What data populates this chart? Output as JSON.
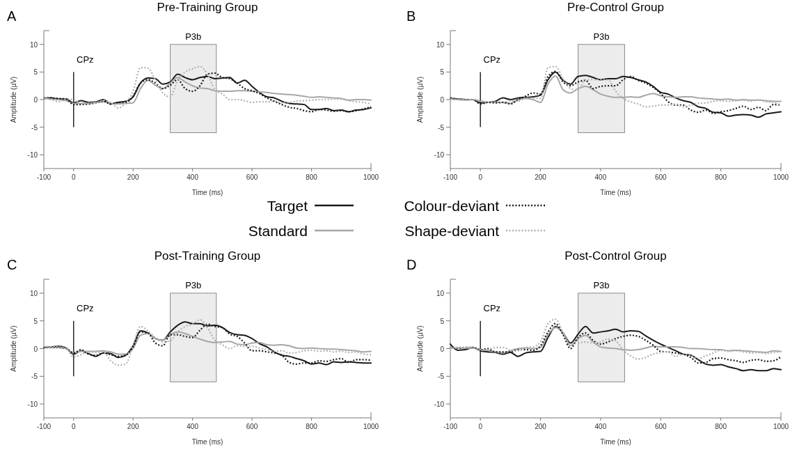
{
  "chart_data": [
    {
      "type": "line",
      "title": "Pre-Training Group",
      "xlabel": "Time (ms)",
      "ylabel": "Amplitude (µV)",
      "annotations": [
        "A",
        "CPz"
      ],
      "legend": "bottom",
      "xlim": [
        -100,
        1000
      ],
      "xticks": [
        -100,
        0,
        200,
        400,
        600,
        800,
        1000
      ],
      "ylim": [
        -12.5,
        12.5
      ],
      "yticks": [
        -10,
        -5,
        0,
        5,
        10
      ],
      "bands": [
        {
          "axis": "x",
          "from": 325,
          "to": 480,
          "label": "P3b",
          "color": "#ececec"
        }
      ],
      "ref_lines": [
        {
          "axis": "x",
          "value": 0,
          "color": "#222222"
        }
      ],
      "x": [
        -100,
        -75,
        -50,
        -25,
        0,
        25,
        50,
        75,
        100,
        125,
        150,
        175,
        200,
        225,
        250,
        275,
        300,
        325,
        350,
        375,
        400,
        425,
        450,
        475,
        500,
        525,
        550,
        575,
        600,
        625,
        650,
        675,
        700,
        725,
        750,
        775,
        800,
        825,
        850,
        875,
        900,
        925,
        950,
        975,
        1000
      ],
      "series": [
        {
          "name": "Target",
          "color": "#1a1a1a",
          "line_style": "solid",
          "values": [
            0.2,
            0.3,
            0.1,
            0.1,
            -0.6,
            -0.2,
            -0.5,
            -0.4,
            0,
            -0.8,
            -0.5,
            -0.3,
            0.5,
            3.0,
            3.9,
            3.8,
            2.8,
            3.2,
            4.6,
            4.0,
            3.6,
            4.0,
            4.2,
            3.8,
            3.9,
            4.0,
            3.0,
            3.5,
            2.4,
            1.3,
            0.5,
            0.3,
            -0.3,
            -0.7,
            -0.8,
            -0.9,
            -1.8,
            -1.8,
            -1.6,
            -2.0,
            -1.9,
            -2.2,
            -1.9,
            -1.8,
            -1.5
          ]
        },
        {
          "name": "Standard",
          "color": "#a6a6a6",
          "line_style": "solid",
          "values": [
            0.2,
            0.1,
            0,
            -0.2,
            -0.7,
            -0.7,
            -0.7,
            -0.5,
            -0.4,
            -0.7,
            -0.8,
            -0.7,
            -0.6,
            2.0,
            3.5,
            2.6,
            2.0,
            3.0,
            4.0,
            3.2,
            2.5,
            2.1,
            2.0,
            1.6,
            1.5,
            1.5,
            1.6,
            1.6,
            1.5,
            1.4,
            1.3,
            1.1,
            1.0,
            0.9,
            0.8,
            0.6,
            0.4,
            0.5,
            0.4,
            0.3,
            0.2,
            -0.1,
            0.0,
            0.0,
            -0.1
          ]
        },
        {
          "name": "Colour-deviant",
          "color": "#1a1a1a",
          "line_style": "dotted",
          "values": [
            0.4,
            0.3,
            0.2,
            0.1,
            -0.9,
            -0.9,
            -0.8,
            -0.6,
            -0.3,
            -0.8,
            -0.5,
            -0.5,
            0.6,
            3.0,
            3.6,
            3.0,
            2.0,
            2.6,
            3.6,
            2.0,
            1.5,
            2.5,
            4.6,
            4.8,
            4.0,
            3.8,
            3.0,
            2.0,
            1.6,
            1.1,
            0.3,
            -0.3,
            -0.9,
            -1.4,
            -1.6,
            -2.0,
            -2.2,
            -1.8,
            -1.9,
            -2.1,
            -2.0,
            -2.2,
            -2.0,
            -1.7,
            -1.3
          ]
        },
        {
          "name": "Shape-deviant",
          "color": "#b0b0b0",
          "line_style": "dotted",
          "values": [
            0.5,
            0,
            -0.4,
            0.1,
            0,
            -0.7,
            -0.6,
            -0.6,
            -0.1,
            -0.5,
            -1.5,
            -0.6,
            1.5,
            5.8,
            5.7,
            3.5,
            1.2,
            0.5,
            3.5,
            5.0,
            5.6,
            6.0,
            4.6,
            1.8,
            1.0,
            0,
            0,
            -0.2,
            -0.5,
            -0.4,
            -0.4,
            -0.3,
            -0.6,
            -0.5,
            -0.3,
            -0.2,
            -0.1,
            0.0,
            0.0,
            0.1,
            0.1,
            -0.2,
            -0.4,
            -0.5,
            -0.8
          ]
        }
      ]
    },
    {
      "type": "line",
      "title": "Pre-Control Group",
      "xlabel": "Time (ms)",
      "ylabel": "Amplitude (µV)",
      "annotations": [
        "B",
        "CPz"
      ],
      "xlim": [
        -100,
        1000
      ],
      "xticks": [
        -100,
        0,
        200,
        400,
        600,
        800,
        1000
      ],
      "ylim": [
        -12.5,
        12.5
      ],
      "yticks": [
        -10,
        -5,
        0,
        5,
        10
      ],
      "bands": [
        {
          "axis": "x",
          "from": 325,
          "to": 480,
          "label": "P3b",
          "color": "#ececec"
        }
      ],
      "ref_lines": [
        {
          "axis": "x",
          "value": 0,
          "color": "#222222"
        }
      ],
      "x": [
        -100,
        -75,
        -50,
        -25,
        0,
        25,
        50,
        75,
        100,
        125,
        150,
        175,
        200,
        225,
        250,
        275,
        300,
        325,
        350,
        375,
        400,
        425,
        450,
        475,
        500,
        525,
        550,
        575,
        600,
        625,
        650,
        675,
        700,
        725,
        750,
        775,
        800,
        825,
        850,
        875,
        900,
        925,
        950,
        975,
        1000
      ],
      "series": [
        {
          "color": "#1a1a1a",
          "line_style": "solid",
          "values": [
            0.2,
            0.1,
            0,
            0,
            -0.6,
            -0.5,
            -0.3,
            0.3,
            0,
            0.3,
            0.4,
            0.5,
            0.8,
            3.6,
            5.0,
            3.5,
            2.8,
            4.2,
            4.4,
            4.0,
            3.6,
            3.8,
            3.8,
            4.2,
            4.0,
            3.6,
            3.2,
            2.4,
            1.3,
            1.0,
            0.3,
            -0.2,
            -0.5,
            -1.3,
            -1.6,
            -2.3,
            -2.4,
            -3.0,
            -2.8,
            -2.7,
            -2.8,
            -3.2,
            -2.6,
            -2.4,
            -2.2
          ]
        },
        {
          "color": "#a6a6a6",
          "line_style": "solid",
          "values": [
            0.1,
            0,
            -0.1,
            0,
            -0.3,
            -0.5,
            -0.5,
            -0.5,
            -0.7,
            0,
            0.2,
            0,
            -0.5,
            2.8,
            4.3,
            1.8,
            1.2,
            2.0,
            2.4,
            1.8,
            1.0,
            0.6,
            0.4,
            0.4,
            0.5,
            0.4,
            0.8,
            1.1,
            0.7,
            0.5,
            0.4,
            0.5,
            0.5,
            0.3,
            0.2,
            0.1,
            0.0,
            0.1,
            -0.1,
            0.0,
            -0.1,
            -0.1,
            -0.2,
            -0.3,
            -0.3
          ]
        },
        {
          "color": "#1a1a1a",
          "line_style": "dotted",
          "values": [
            0.3,
            0.1,
            0,
            0,
            -0.8,
            -0.5,
            -0.6,
            -0.5,
            -0.8,
            0,
            0.6,
            1.2,
            1.0,
            4.2,
            5.1,
            3.2,
            2.5,
            3.2,
            3.5,
            2.0,
            2.4,
            2.5,
            2.5,
            3.6,
            4.2,
            3.5,
            3.0,
            2.2,
            1.1,
            -0.4,
            -1.0,
            -1.0,
            -1.9,
            -2.3,
            -1.9,
            -2.5,
            -2.2,
            -2.0,
            -1.6,
            -1.2,
            -1.8,
            -1.4,
            -2.0,
            -0.9,
            -1.0
          ]
        },
        {
          "color": "#b0b0b0",
          "line_style": "dotted",
          "values": [
            0.1,
            0,
            0,
            0,
            -0.2,
            -0.5,
            -0.4,
            -0.6,
            -0.2,
            -0.3,
            0.3,
            0.3,
            0.2,
            5.8,
            6.0,
            3.8,
            2.0,
            1.7,
            3.6,
            3.6,
            3.6,
            3.6,
            1.5,
            0.2,
            -0.4,
            -0.8,
            -1.3,
            -1.2,
            -1.0,
            -1.0,
            -0.8,
            -1.3,
            -1.0,
            -0.7,
            -0.6,
            -0.3,
            -0.2,
            -0.3,
            -0.2,
            -0.1,
            -0.3,
            0.0,
            -0.4,
            -0.5,
            -1.0
          ]
        }
      ]
    },
    {
      "type": "line",
      "title": "Post-Training Group",
      "xlabel": "Time (ms)",
      "ylabel": "Amplitude (µV)",
      "annotations": [
        "C",
        "CPz"
      ],
      "xlim": [
        -100,
        1000
      ],
      "xticks": [
        -100,
        0,
        200,
        400,
        600,
        800,
        1000
      ],
      "ylim": [
        -12.5,
        12.5
      ],
      "yticks": [
        -10,
        -5,
        0,
        5,
        10
      ],
      "bands": [
        {
          "axis": "x",
          "from": 325,
          "to": 480,
          "label": "P3b",
          "color": "#ececec"
        }
      ],
      "ref_lines": [
        {
          "axis": "x",
          "value": 0,
          "color": "#222222"
        }
      ],
      "x": [
        -100,
        -75,
        -50,
        -25,
        0,
        25,
        50,
        75,
        100,
        125,
        150,
        175,
        200,
        225,
        250,
        275,
        300,
        325,
        350,
        375,
        400,
        425,
        450,
        475,
        500,
        525,
        550,
        575,
        600,
        625,
        650,
        675,
        700,
        725,
        750,
        775,
        800,
        825,
        850,
        875,
        900,
        925,
        950,
        975,
        1000
      ],
      "series": [
        {
          "color": "#1a1a1a",
          "line_style": "solid",
          "values": [
            0.2,
            0.3,
            0.4,
            0.1,
            -1.0,
            -0.4,
            -0.9,
            -1.4,
            -0.8,
            -0.9,
            -1.6,
            -1.2,
            0.5,
            3.2,
            2.8,
            1.8,
            1.5,
            3.0,
            4.2,
            4.8,
            4.5,
            4.5,
            4.1,
            4.2,
            3.8,
            2.9,
            2.5,
            2.4,
            1.8,
            0.9,
            0.3,
            -0.6,
            -1.2,
            -1.4,
            -1.8,
            -2.2,
            -2.8,
            -2.6,
            -2.9,
            -2.4,
            -2.5,
            -2.4,
            -2.5,
            -2.6,
            -2.6
          ]
        },
        {
          "color": "#a6a6a6",
          "line_style": "solid",
          "values": [
            0.3,
            0.2,
            0.2,
            0,
            -0.8,
            -0.5,
            -0.5,
            -0.5,
            -0.4,
            -0.6,
            -1.0,
            -1.0,
            0,
            2.4,
            2.7,
            1.8,
            1.5,
            2.5,
            3.0,
            2.7,
            2.2,
            1.7,
            1.3,
            1.1,
            1.2,
            1.3,
            0.8,
            0.7,
            1.0,
            1.1,
            0.7,
            0.6,
            0.7,
            0.5,
            0.1,
            0.0,
            0.1,
            0.0,
            -0.1,
            -0.1,
            -0.2,
            -0.3,
            -0.4,
            -0.6,
            -0.5
          ]
        },
        {
          "color": "#1a1a1a",
          "line_style": "dotted",
          "values": [
            0.3,
            0.2,
            0.2,
            0,
            -0.8,
            -0.2,
            -1.0,
            -1.2,
            -0.8,
            -1.1,
            -1.4,
            -1.2,
            0.3,
            3.0,
            2.8,
            1.0,
            0.5,
            2.5,
            2.5,
            2.2,
            2.0,
            3.3,
            4.4,
            4.0,
            3.8,
            2.6,
            2.2,
            1.0,
            -0.4,
            -0.4,
            -0.6,
            -0.8,
            -1.2,
            -2.5,
            -2.8,
            -2.6,
            -2.6,
            -2.2,
            -2.3,
            -2.0,
            -1.8,
            -2.5,
            -2.0,
            -2.0,
            -2.1
          ]
        },
        {
          "color": "#b0b0b0",
          "line_style": "dotted",
          "values": [
            0.4,
            0.3,
            0.3,
            0,
            -1.5,
            -1.1,
            -0.6,
            -0.7,
            -0.6,
            -2.2,
            -3.0,
            -2.8,
            0.6,
            4.0,
            3.2,
            2.0,
            1.2,
            1.4,
            3.0,
            4.0,
            4.4,
            5.2,
            3.8,
            1.5,
            0.7,
            0,
            0.5,
            0.4,
            0.4,
            0.1,
            -0.2,
            -0.5,
            -0.4,
            -0.8,
            -0.7,
            -0.4,
            -0.3,
            -0.5,
            -0.4,
            -0.6,
            -0.5,
            -0.7,
            -0.6,
            -1.0,
            -1.1
          ]
        }
      ]
    },
    {
      "type": "line",
      "title": "Post-Control Group",
      "xlabel": "Time (ms)",
      "ylabel": "Amplitude (µV)",
      "annotations": [
        "D",
        "CPz"
      ],
      "xlim": [
        -100,
        1000
      ],
      "xticks": [
        -100,
        0,
        200,
        400,
        600,
        800,
        1000
      ],
      "ylim": [
        -12.5,
        12.5
      ],
      "yticks": [
        -10,
        -5,
        0,
        5,
        10
      ],
      "bands": [
        {
          "axis": "x",
          "from": 325,
          "to": 480,
          "label": "P3b",
          "color": "#ececec"
        }
      ],
      "ref_lines": [
        {
          "axis": "x",
          "value": 0,
          "color": "#222222"
        }
      ],
      "x": [
        -100,
        -75,
        -50,
        -25,
        0,
        25,
        50,
        75,
        100,
        125,
        150,
        175,
        200,
        225,
        250,
        275,
        300,
        325,
        350,
        375,
        400,
        425,
        450,
        475,
        500,
        525,
        550,
        575,
        600,
        625,
        650,
        675,
        700,
        725,
        750,
        775,
        800,
        825,
        850,
        875,
        900,
        925,
        950,
        975,
        1000
      ],
      "series": [
        {
          "color": "#1a1a1a",
          "line_style": "solid",
          "values": [
            0.8,
            -0.3,
            -0.2,
            0.2,
            -0.4,
            -0.6,
            -0.7,
            -1.0,
            -0.7,
            -1.4,
            -0.8,
            -0.6,
            -0.5,
            2.0,
            4.0,
            2.8,
            1.0,
            2.6,
            4.0,
            2.8,
            3.0,
            3.2,
            3.5,
            3.0,
            3.2,
            3.1,
            2.3,
            1.5,
            0.8,
            0.2,
            -0.4,
            -1.0,
            -1.2,
            -2.0,
            -2.8,
            -3.0,
            -2.9,
            -3.3,
            -3.6,
            -4.0,
            -3.8,
            -4.0,
            -4.0,
            -3.6,
            -3.8
          ]
        },
        {
          "color": "#a6a6a6",
          "line_style": "solid",
          "values": [
            0.1,
            0.1,
            0.1,
            0.1,
            -0.2,
            -0.3,
            -0.6,
            -0.8,
            -0.4,
            0,
            0.1,
            0,
            0.2,
            2.5,
            3.8,
            2.8,
            0.5,
            1.8,
            2.4,
            1.2,
            0.3,
            0.1,
            0,
            -0.2,
            -0.3,
            -0.2,
            0.1,
            0.4,
            0.3,
            0.3,
            0.3,
            0.2,
            0,
            0,
            -0.1,
            -0.2,
            -0.2,
            -0.4,
            -0.3,
            -0.4,
            -0.5,
            -0.6,
            -0.7,
            -0.4,
            -0.5
          ]
        },
        {
          "color": "#1a1a1a",
          "line_style": "dotted",
          "values": [
            0.3,
            0.1,
            0.2,
            0.2,
            -0.2,
            0,
            -0.6,
            -0.6,
            -0.6,
            -0.2,
            -0.2,
            -0.3,
            0.5,
            3.0,
            4.5,
            2.5,
            0,
            2.0,
            2.8,
            1.5,
            0.8,
            1.2,
            1.8,
            2.2,
            2.4,
            2.2,
            1.5,
            0.6,
            -0.5,
            -0.6,
            -0.8,
            -1.0,
            -1.6,
            -2.6,
            -2.5,
            -1.8,
            -1.7,
            -2.0,
            -2.2,
            -2.5,
            -2.1,
            -2.0,
            -2.3,
            -2.2,
            -1.5
          ]
        },
        {
          "color": "#b0b0b0",
          "line_style": "dotted",
          "values": [
            0.3,
            0.2,
            0.2,
            0.1,
            -0.3,
            -0.2,
            0.2,
            0.2,
            -0.3,
            -0.4,
            0.2,
            0.3,
            1.2,
            4.5,
            5.3,
            3.0,
            0.8,
            1.0,
            1.2,
            1.0,
            1.2,
            1.7,
            1.4,
            -0.3,
            -1.3,
            -1.9,
            -1.6,
            -1.0,
            -0.7,
            -0.6,
            -1.4,
            -1.0,
            -1.2,
            -1.8,
            -1.3,
            -0.8,
            -0.3,
            -0.5,
            -0.4,
            -0.6,
            -0.8,
            -0.7,
            -0.9,
            -0.7,
            -0.6
          ]
        }
      ]
    }
  ]
}
